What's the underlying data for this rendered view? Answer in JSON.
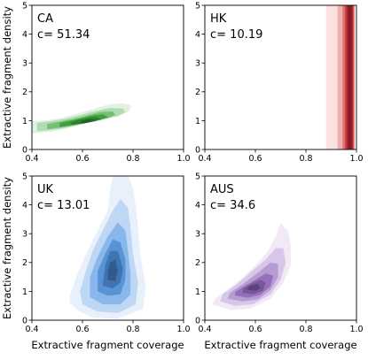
{
  "chart_data": [
    {
      "type": "kde-density",
      "label": "CA",
      "annotation": "c= 51.34",
      "color": "#2ca02c",
      "xlim": [
        0.4,
        1.0
      ],
      "ylim": [
        0,
        5
      ],
      "xticks": [
        "0.4",
        "0.6",
        "0.8",
        "1.0"
      ],
      "yticks": [
        "0",
        "1",
        "2",
        "3",
        "4",
        "5"
      ],
      "ylabel": "Extractive fragment density",
      "xlabel": "",
      "contours": [
        [
          [
            0.4,
            0.55
          ],
          [
            0.48,
            0.62
          ],
          [
            0.56,
            0.78
          ],
          [
            0.62,
            0.92
          ],
          [
            0.68,
            1.05
          ],
          [
            0.74,
            1.15
          ],
          [
            0.78,
            1.3
          ],
          [
            0.79,
            1.42
          ],
          [
            0.79,
            1.55
          ],
          [
            0.75,
            1.6
          ],
          [
            0.7,
            1.55
          ],
          [
            0.64,
            1.4
          ],
          [
            0.58,
            1.25
          ],
          [
            0.52,
            1.1
          ],
          [
            0.46,
            1.02
          ],
          [
            0.4,
            0.98
          ]
        ],
        [
          [
            0.42,
            0.63
          ],
          [
            0.5,
            0.7
          ],
          [
            0.57,
            0.82
          ],
          [
            0.63,
            0.95
          ],
          [
            0.69,
            1.06
          ],
          [
            0.74,
            1.16
          ],
          [
            0.77,
            1.3
          ],
          [
            0.76,
            1.42
          ],
          [
            0.71,
            1.44
          ],
          [
            0.65,
            1.33
          ],
          [
            0.59,
            1.19
          ],
          [
            0.53,
            1.06
          ],
          [
            0.47,
            0.98
          ],
          [
            0.42,
            0.92
          ]
        ],
        [
          [
            0.46,
            0.7
          ],
          [
            0.53,
            0.78
          ],
          [
            0.59,
            0.88
          ],
          [
            0.65,
            0.98
          ],
          [
            0.7,
            1.08
          ],
          [
            0.73,
            1.2
          ],
          [
            0.72,
            1.32
          ],
          [
            0.67,
            1.3
          ],
          [
            0.62,
            1.18
          ],
          [
            0.56,
            1.05
          ],
          [
            0.5,
            0.95
          ],
          [
            0.46,
            0.88
          ]
        ],
        [
          [
            0.51,
            0.78
          ],
          [
            0.57,
            0.86
          ],
          [
            0.62,
            0.94
          ],
          [
            0.67,
            1.02
          ],
          [
            0.7,
            1.13
          ],
          [
            0.68,
            1.22
          ],
          [
            0.64,
            1.18
          ],
          [
            0.59,
            1.07
          ],
          [
            0.54,
            0.98
          ],
          [
            0.51,
            0.92
          ]
        ],
        [
          [
            0.56,
            0.85
          ],
          [
            0.61,
            0.91
          ],
          [
            0.65,
            0.98
          ],
          [
            0.67,
            1.07
          ],
          [
            0.65,
            1.13
          ],
          [
            0.61,
            1.07
          ],
          [
            0.57,
            0.99
          ],
          [
            0.55,
            0.92
          ]
        ],
        [
          [
            0.6,
            0.9
          ],
          [
            0.63,
            0.95
          ],
          [
            0.65,
            1.02
          ],
          [
            0.63,
            1.05
          ],
          [
            0.6,
            1.0
          ],
          [
            0.59,
            0.94
          ]
        ]
      ]
    },
    {
      "type": "kde-density",
      "label": "HK",
      "annotation": "c= 10.19",
      "color": "#d62728",
      "xlim": [
        0.4,
        1.0
      ],
      "ylim": [
        0,
        5
      ],
      "xticks": [
        "0.4",
        "0.6",
        "0.8",
        "1.0"
      ],
      "yticks": [
        "0",
        "1",
        "2",
        "3",
        "4",
        "5"
      ],
      "ylabel": "",
      "xlabel": "",
      "contours": [
        [
          [
            0.88,
            0.0
          ],
          [
            0.995,
            0.0
          ],
          [
            0.995,
            5.0
          ],
          [
            0.88,
            5.0
          ]
        ],
        [
          [
            0.925,
            0.0
          ],
          [
            0.993,
            0.0
          ],
          [
            0.993,
            5.0
          ],
          [
            0.925,
            5.0
          ]
        ],
        [
          [
            0.945,
            0.0
          ],
          [
            0.991,
            0.0
          ],
          [
            0.991,
            5.0
          ],
          [
            0.945,
            5.0
          ]
        ],
        [
          [
            0.955,
            0.0
          ],
          [
            0.988,
            0.0
          ],
          [
            0.988,
            5.0
          ],
          [
            0.955,
            5.0
          ]
        ],
        [
          [
            0.962,
            0.0
          ],
          [
            0.985,
            0.0
          ],
          [
            0.985,
            5.0
          ],
          [
            0.962,
            5.0
          ]
        ],
        [
          [
            0.967,
            0.0
          ],
          [
            0.981,
            0.0
          ],
          [
            0.981,
            5.0
          ],
          [
            0.967,
            5.0
          ]
        ]
      ]
    },
    {
      "type": "kde-density",
      "label": "UK",
      "annotation": "c= 13.01",
      "color": "#4a90e2",
      "xlim": [
        0.4,
        1.0
      ],
      "ylim": [
        0,
        5
      ],
      "xticks": [
        "0.4",
        "0.6",
        "0.8",
        "1.0"
      ],
      "yticks": [
        "0",
        "1",
        "2",
        "3",
        "4",
        "5"
      ],
      "ylabel": "Extractive fragment density",
      "xlabel": "Extractive fragment coverage",
      "contours": [
        [
          [
            0.58,
            0.35
          ],
          [
            0.64,
            0.1
          ],
          [
            0.74,
            0.05
          ],
          [
            0.84,
            0.4
          ],
          [
            0.85,
            1.2
          ],
          [
            0.83,
            2.2
          ],
          [
            0.82,
            3.2
          ],
          [
            0.81,
            4.0
          ],
          [
            0.8,
            4.6
          ],
          [
            0.78,
            5.0
          ],
          [
            0.72,
            5.0
          ],
          [
            0.71,
            4.5
          ],
          [
            0.7,
            3.8
          ],
          [
            0.66,
            3.1
          ],
          [
            0.62,
            2.4
          ],
          [
            0.58,
            1.6
          ],
          [
            0.55,
            0.9
          ],
          [
            0.55,
            0.6
          ]
        ],
        [
          [
            0.6,
            0.55
          ],
          [
            0.66,
            0.3
          ],
          [
            0.74,
            0.25
          ],
          [
            0.81,
            0.55
          ],
          [
            0.82,
            1.3
          ],
          [
            0.8,
            2.3
          ],
          [
            0.79,
            3.2
          ],
          [
            0.78,
            3.9
          ],
          [
            0.75,
            4.2
          ],
          [
            0.72,
            3.8
          ],
          [
            0.68,
            3.1
          ],
          [
            0.64,
            2.4
          ],
          [
            0.61,
            1.6
          ],
          [
            0.59,
            1.0
          ]
        ],
        [
          [
            0.63,
            0.8
          ],
          [
            0.68,
            0.55
          ],
          [
            0.75,
            0.55
          ],
          [
            0.79,
            0.9
          ],
          [
            0.79,
            1.6
          ],
          [
            0.78,
            2.4
          ],
          [
            0.77,
            3.1
          ],
          [
            0.74,
            3.4
          ],
          [
            0.7,
            2.9
          ],
          [
            0.66,
            2.2
          ],
          [
            0.63,
            1.5
          ]
        ],
        [
          [
            0.66,
            1.0
          ],
          [
            0.7,
            0.85
          ],
          [
            0.75,
            0.9
          ],
          [
            0.77,
            1.4
          ],
          [
            0.77,
            2.1
          ],
          [
            0.75,
            2.7
          ],
          [
            0.72,
            2.8
          ],
          [
            0.69,
            2.3
          ],
          [
            0.66,
            1.7
          ]
        ],
        [
          [
            0.68,
            1.2
          ],
          [
            0.72,
            1.1
          ],
          [
            0.75,
            1.3
          ],
          [
            0.76,
            1.8
          ],
          [
            0.74,
            2.4
          ],
          [
            0.71,
            2.4
          ],
          [
            0.69,
            1.9
          ]
        ],
        [
          [
            0.7,
            1.4
          ],
          [
            0.73,
            1.35
          ],
          [
            0.74,
            1.7
          ],
          [
            0.73,
            2.1
          ],
          [
            0.71,
            2.0
          ],
          [
            0.7,
            1.7
          ]
        ]
      ]
    },
    {
      "type": "kde-density",
      "label": "AUS",
      "annotation": "c= 34.6",
      "color": "#9467bd",
      "xlim": [
        0.4,
        1.0
      ],
      "ylim": [
        0,
        5
      ],
      "xticks": [
        "0.4",
        "0.6",
        "0.8",
        "1.0"
      ],
      "yticks": [
        "0",
        "1",
        "2",
        "3",
        "4",
        "5"
      ],
      "ylabel": "",
      "xlabel": "Extractive fragment coverage",
      "contours": [
        [
          [
            0.43,
            0.55
          ],
          [
            0.5,
            0.35
          ],
          [
            0.58,
            0.4
          ],
          [
            0.66,
            0.75
          ],
          [
            0.71,
            1.3
          ],
          [
            0.74,
            1.9
          ],
          [
            0.74,
            2.6
          ],
          [
            0.73,
            3.1
          ],
          [
            0.7,
            3.35
          ],
          [
            0.68,
            2.9
          ],
          [
            0.65,
            2.4
          ],
          [
            0.6,
            1.9
          ],
          [
            0.54,
            1.4
          ],
          [
            0.48,
            1.0
          ],
          [
            0.44,
            0.75
          ]
        ],
        [
          [
            0.46,
            0.65
          ],
          [
            0.52,
            0.5
          ],
          [
            0.59,
            0.55
          ],
          [
            0.66,
            0.9
          ],
          [
            0.7,
            1.4
          ],
          [
            0.72,
            2.0
          ],
          [
            0.71,
            2.5
          ],
          [
            0.68,
            2.5
          ],
          [
            0.64,
            2.1
          ],
          [
            0.58,
            1.65
          ],
          [
            0.52,
            1.2
          ],
          [
            0.47,
            0.9
          ]
        ],
        [
          [
            0.49,
            0.75
          ],
          [
            0.55,
            0.65
          ],
          [
            0.61,
            0.72
          ],
          [
            0.66,
            1.05
          ],
          [
            0.69,
            1.5
          ],
          [
            0.69,
            1.95
          ],
          [
            0.66,
            2.0
          ],
          [
            0.61,
            1.65
          ],
          [
            0.55,
            1.25
          ],
          [
            0.5,
            0.95
          ]
        ],
        [
          [
            0.52,
            0.85
          ],
          [
            0.57,
            0.78
          ],
          [
            0.62,
            0.88
          ],
          [
            0.66,
            1.18
          ],
          [
            0.67,
            1.55
          ],
          [
            0.64,
            1.62
          ],
          [
            0.6,
            1.4
          ],
          [
            0.55,
            1.15
          ],
          [
            0.52,
            0.98
          ]
        ],
        [
          [
            0.55,
            0.95
          ],
          [
            0.59,
            0.9
          ],
          [
            0.63,
            1.02
          ],
          [
            0.64,
            1.3
          ],
          [
            0.62,
            1.4
          ],
          [
            0.58,
            1.25
          ],
          [
            0.55,
            1.08
          ]
        ],
        [
          [
            0.57,
            1.05
          ],
          [
            0.6,
            1.02
          ],
          [
            0.62,
            1.12
          ],
          [
            0.61,
            1.25
          ],
          [
            0.58,
            1.2
          ],
          [
            0.57,
            1.12
          ]
        ]
      ]
    }
  ]
}
